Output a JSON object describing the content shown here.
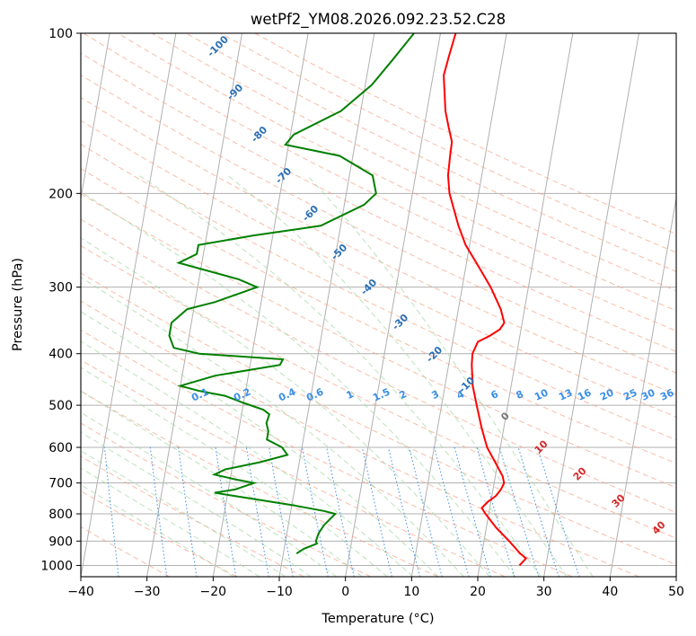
{
  "chart_data": {
    "type": "skew-t",
    "title": "wetPf2_YM08.2026.092.23.52.C28",
    "xlabel": "Temperature (°C)",
    "ylabel": "Pressure (hPa)",
    "xlim": [
      -40,
      50
    ],
    "ylim": [
      1050,
      100
    ],
    "y_scale": "log",
    "grid": true,
    "x_ticks": [
      "−40",
      "−30",
      "−20",
      "−10",
      "0",
      "10",
      "20",
      "30",
      "40",
      "50"
    ],
    "y_ticks": [
      "100",
      "200",
      "300",
      "400",
      "500",
      "600",
      "700",
      "800",
      "900",
      "1000"
    ],
    "temperature_color": "#ff0000",
    "dewpoint_color": "#008000",
    "temperature_profile": [
      [
        1000,
        26.0
      ],
      [
        970,
        26.8
      ],
      [
        950,
        25.8
      ],
      [
        900,
        23.8
      ],
      [
        850,
        21.5
      ],
      [
        800,
        19.5
      ],
      [
        780,
        18.8
      ],
      [
        760,
        19.5
      ],
      [
        740,
        20.6
      ],
      [
        720,
        21.2
      ],
      [
        700,
        21.5
      ],
      [
        680,
        21.1
      ],
      [
        650,
        20.0
      ],
      [
        600,
        18.0
      ],
      [
        550,
        16.6
      ],
      [
        500,
        15.3
      ],
      [
        460,
        14.2
      ],
      [
        420,
        13.5
      ],
      [
        400,
        13.3
      ],
      [
        380,
        13.8
      ],
      [
        370,
        15.5
      ],
      [
        360,
        16.8
      ],
      [
        350,
        17.3
      ],
      [
        330,
        16.4
      ],
      [
        300,
        14.3
      ],
      [
        270,
        11.5
      ],
      [
        250,
        9.4
      ],
      [
        230,
        7.8
      ],
      [
        200,
        5.6
      ],
      [
        185,
        4.9
      ],
      [
        170,
        4.7
      ],
      [
        160,
        4.6
      ],
      [
        150,
        3.7
      ],
      [
        140,
        2.8
      ],
      [
        120,
        1.6
      ],
      [
        110,
        1.9
      ],
      [
        100,
        2.3
      ]
    ],
    "dewpoint_profile": [
      [
        950,
        -8.0
      ],
      [
        930,
        -7.0
      ],
      [
        910,
        -5.2
      ],
      [
        900,
        -5.4
      ],
      [
        870,
        -5.2
      ],
      [
        840,
        -4.6
      ],
      [
        800,
        -3.2
      ],
      [
        790,
        -5.0
      ],
      [
        770,
        -10.0
      ],
      [
        750,
        -16.0
      ],
      [
        740,
        -19.0
      ],
      [
        730,
        -22.0
      ],
      [
        720,
        -19.0
      ],
      [
        700,
        -16.3
      ],
      [
        690,
        -19.0
      ],
      [
        675,
        -22.5
      ],
      [
        660,
        -21.0
      ],
      [
        640,
        -16.0
      ],
      [
        620,
        -12.0
      ],
      [
        600,
        -13.0
      ],
      [
        580,
        -15.5
      ],
      [
        560,
        -15.5
      ],
      [
        540,
        -16.0
      ],
      [
        520,
        -15.8
      ],
      [
        510,
        -16.8
      ],
      [
        495,
        -20.0
      ],
      [
        480,
        -23.0
      ],
      [
        470,
        -27.0
      ],
      [
        460,
        -30.0
      ],
      [
        440,
        -25.0
      ],
      [
        420,
        -15.5
      ],
      [
        410,
        -15.2
      ],
      [
        400,
        -28.0
      ],
      [
        390,
        -32.0
      ],
      [
        370,
        -33.0
      ],
      [
        350,
        -33.0
      ],
      [
        330,
        -31.0
      ],
      [
        320,
        -27.0
      ],
      [
        300,
        -21.0
      ],
      [
        290,
        -24.0
      ],
      [
        270,
        -33.5
      ],
      [
        260,
        -31.0
      ],
      [
        250,
        -31.0
      ],
      [
        240,
        -23.0
      ],
      [
        230,
        -13.0
      ],
      [
        210,
        -7.0
      ],
      [
        200,
        -5.5
      ],
      [
        185,
        -6.5
      ],
      [
        170,
        -12.0
      ],
      [
        162,
        -20.5
      ],
      [
        155,
        -19.5
      ],
      [
        140,
        -13.0
      ],
      [
        125,
        -9.0
      ],
      [
        112,
        -6.5
      ],
      [
        100,
        -4.0
      ]
    ],
    "dry_adiabat_labels": [
      "-100",
      "-90",
      "-80",
      "-70",
      "-60",
      "-50",
      "-40",
      "-30",
      "-20",
      "-10"
    ],
    "mixing_ratio_labels": [
      "0.1",
      "0.2",
      "0.4",
      "0.6",
      "1",
      "1.5",
      "2",
      "3",
      "4",
      "6",
      "8",
      "10",
      "13",
      "16",
      "20",
      "25",
      "30",
      "36"
    ],
    "moist_adiabat_labels": [
      "0",
      "10",
      "20",
      "30",
      "40"
    ]
  }
}
